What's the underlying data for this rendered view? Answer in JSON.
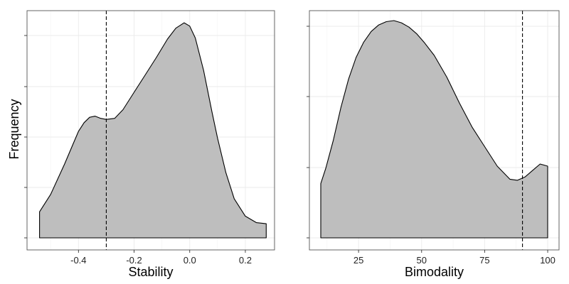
{
  "figure": {
    "ylabel": "Frequency"
  },
  "style": {
    "fill": "#bebebe",
    "outline": "#000000",
    "grid": "#ebebeb",
    "panel_border": "#555555",
    "vline": "#000000"
  },
  "chart_data": [
    {
      "type": "area",
      "xlabel": "Stability",
      "xlim": [
        -0.585,
        0.305
      ],
      "ylim": [
        0,
        1.0
      ],
      "xticks": [
        -0.4,
        -0.2,
        0.0,
        0.2
      ],
      "xtick_labels": [
        "-0.4",
        "-0.2",
        "0.0",
        "0.2"
      ],
      "y_tick_count": 5,
      "y_tick_labels_shown": false,
      "vline": -0.3,
      "vline_style": "dashed",
      "grid": true,
      "series": [
        {
          "x": [
            -0.54,
            -0.5,
            -0.45,
            -0.42,
            -0.4,
            -0.38,
            -0.36,
            -0.34,
            -0.32,
            -0.3,
            -0.27,
            -0.24,
            -0.2,
            -0.16,
            -0.12,
            -0.08,
            -0.05,
            -0.02,
            0.0,
            0.02,
            0.05,
            0.08,
            0.1,
            0.13,
            0.16,
            0.2,
            0.24,
            0.275
          ],
          "y": [
            0.12,
            0.2,
            0.34,
            0.43,
            0.49,
            0.53,
            0.555,
            0.56,
            0.55,
            0.545,
            0.55,
            0.59,
            0.67,
            0.75,
            0.83,
            0.915,
            0.965,
            0.99,
            0.975,
            0.92,
            0.77,
            0.58,
            0.46,
            0.3,
            0.18,
            0.1,
            0.07,
            0.065
          ]
        }
      ]
    },
    {
      "type": "area",
      "xlabel": "Bimodality",
      "xlim": [
        5.5,
        104.5
      ],
      "ylim": [
        0,
        1.0
      ],
      "xticks": [
        25,
        50,
        75,
        100
      ],
      "xtick_labels": [
        "25",
        "50",
        "75",
        "100"
      ],
      "y_tick_count": 4,
      "y_tick_labels_shown": false,
      "vline": 90,
      "vline_style": "dashed",
      "grid": true,
      "series": [
        {
          "x": [
            10,
            12,
            15,
            18,
            21,
            24,
            27,
            30,
            33,
            36,
            39,
            42,
            45,
            48,
            51,
            55,
            60,
            65,
            70,
            75,
            80,
            85,
            88,
            91,
            94,
            97,
            100
          ],
          "y": [
            0.25,
            0.32,
            0.45,
            0.6,
            0.73,
            0.83,
            0.9,
            0.95,
            0.98,
            0.995,
            1.0,
            0.99,
            0.97,
            0.94,
            0.9,
            0.84,
            0.74,
            0.62,
            0.51,
            0.42,
            0.33,
            0.27,
            0.265,
            0.28,
            0.31,
            0.34,
            0.33
          ]
        }
      ]
    }
  ]
}
